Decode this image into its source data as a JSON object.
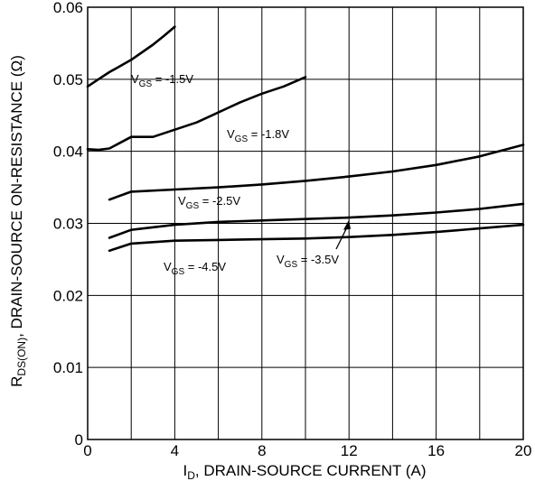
{
  "chart_data": {
    "type": "line",
    "xlabel": {
      "main": "I",
      "sub": "D",
      "rest": ", DRAIN-SOURCE CURRENT (A)"
    },
    "ylabel": {
      "main": "R",
      "sub": "DS(ON)",
      "rest": ", DRAIN-SOURCE ON-RESISTANCE (Ω)"
    },
    "xlim": [
      0,
      20
    ],
    "ylim": [
      0,
      0.06
    ],
    "x_ticks": [
      {
        "value": 0,
        "label": "0"
      },
      {
        "value": 4,
        "label": "4"
      },
      {
        "value": 8,
        "label": "8"
      },
      {
        "value": 12,
        "label": "12"
      },
      {
        "value": 16,
        "label": "16"
      },
      {
        "value": 20,
        "label": "20"
      }
    ],
    "y_ticks": [
      {
        "value": 0,
        "label": "0"
      },
      {
        "value": 0.01,
        "label": "0.01"
      },
      {
        "value": 0.02,
        "label": "0.02"
      },
      {
        "value": 0.03,
        "label": "0.03"
      },
      {
        "value": 0.04,
        "label": "0.04"
      },
      {
        "value": 0.05,
        "label": "0.05"
      },
      {
        "value": 0.06,
        "label": "0.06"
      }
    ],
    "grid": {
      "x_step": 2,
      "y_step": 0.01
    },
    "series": [
      {
        "name_main": "V",
        "name_sub": "GS",
        "name_rest": " = -1.5V",
        "x": [
          0,
          0.5,
          1,
          2,
          3,
          3.5,
          4
        ],
        "y": [
          0.049,
          0.05,
          0.051,
          0.0527,
          0.0548,
          0.056,
          0.0573
        ]
      },
      {
        "name_main": "V",
        "name_sub": "GS",
        "name_rest": " = -1.8V",
        "x": [
          0,
          0.5,
          1,
          2,
          3,
          4,
          5,
          6,
          7,
          8,
          9,
          10
        ],
        "y": [
          0.0403,
          0.0402,
          0.0404,
          0.042,
          0.042,
          0.043,
          0.044,
          0.0454,
          0.0468,
          0.048,
          0.049,
          0.0503
        ]
      },
      {
        "name_main": "V",
        "name_sub": "GS",
        "name_rest": " = -2.5V",
        "x": [
          1,
          2,
          4,
          6,
          8,
          10,
          12,
          14,
          16,
          18,
          20
        ],
        "y": [
          0.0333,
          0.0344,
          0.0347,
          0.035,
          0.0354,
          0.0359,
          0.0365,
          0.0372,
          0.0381,
          0.0393,
          0.0409
        ]
      },
      {
        "name_main": "V",
        "name_sub": "GS",
        "name_rest": " = -3.5V",
        "x": [
          1,
          2,
          4,
          6,
          8,
          10,
          12,
          14,
          16,
          18,
          20
        ],
        "y": [
          0.028,
          0.0291,
          0.0298,
          0.0302,
          0.0304,
          0.0306,
          0.0308,
          0.0311,
          0.0315,
          0.032,
          0.0327
        ]
      },
      {
        "name_main": "V",
        "name_sub": "GS",
        "name_rest": " = -4.5V",
        "x": [
          1,
          2,
          4,
          6,
          8,
          10,
          12,
          14,
          16,
          18,
          20
        ],
        "y": [
          0.0262,
          0.0272,
          0.0276,
          0.0277,
          0.0278,
          0.0279,
          0.0281,
          0.0284,
          0.0288,
          0.0293,
          0.0298
        ]
      }
    ]
  }
}
